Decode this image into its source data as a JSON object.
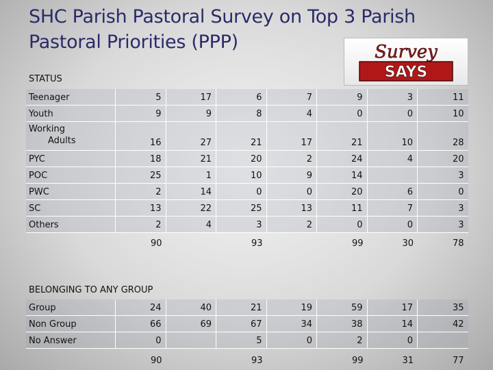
{
  "title": "SHC Parish Pastoral Survey on Top 3 Parish Pastoral Priorities (PPP)",
  "logo": {
    "word1": "Survey",
    "word2": "SAYS"
  },
  "status": {
    "label": "STATUS",
    "rows": [
      {
        "label": "Teenager",
        "values": [
          "5",
          "17",
          "6",
          "7",
          "9",
          "3",
          "11"
        ]
      },
      {
        "label": "Youth",
        "values": [
          "9",
          "9",
          "8",
          "4",
          "0",
          "0",
          "10"
        ]
      },
      {
        "label_line1": "Working",
        "label_line2": "Adults",
        "values": [
          "16",
          "27",
          "21",
          "17",
          "21",
          "10",
          "28"
        ]
      },
      {
        "label": "PYC",
        "values": [
          "18",
          "21",
          "20",
          "2",
          "24",
          "4",
          "20"
        ]
      },
      {
        "label": "POC",
        "values": [
          "25",
          "1",
          "10",
          "9",
          "14",
          "",
          "3"
        ]
      },
      {
        "label": "PWC",
        "values": [
          "2",
          "14",
          "0",
          "0",
          "20",
          "6",
          "0"
        ]
      },
      {
        "label": "SC",
        "values": [
          "13",
          "22",
          "25",
          "13",
          "11",
          "7",
          "3"
        ]
      },
      {
        "label": "Others",
        "values": [
          "2",
          "4",
          "3",
          "2",
          "0",
          "0",
          "3"
        ]
      }
    ],
    "totals": [
      "90",
      "",
      "93",
      "",
      "99",
      "30",
      "78"
    ]
  },
  "belonging": {
    "label": "BELONGING TO ANY GROUP",
    "rows": [
      {
        "label": "Group",
        "values": [
          "24",
          "40",
          "21",
          "19",
          "59",
          "17",
          "35"
        ]
      },
      {
        "label": "Non Group",
        "values": [
          "66",
          "69",
          "67",
          "34",
          "38",
          "14",
          "42"
        ]
      },
      {
        "label": "No Answer",
        "values": [
          "0",
          "",
          "5",
          "0",
          "2",
          "0",
          ""
        ]
      }
    ],
    "totals": [
      "90",
      "",
      "93",
      "",
      "99",
      "31",
      "77"
    ]
  }
}
